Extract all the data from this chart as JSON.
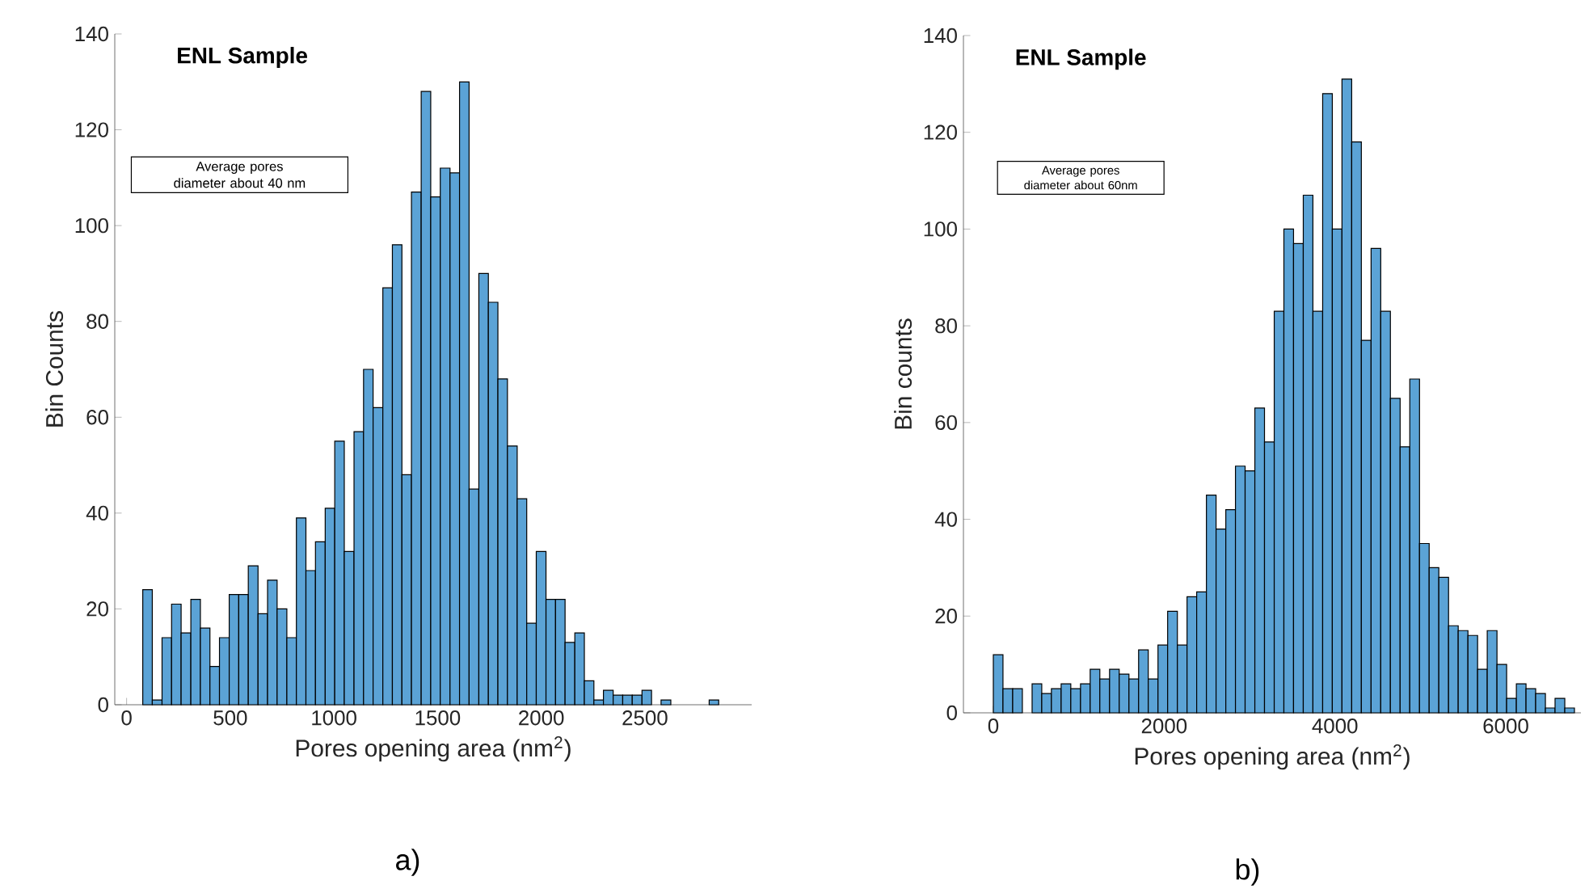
{
  "chart_data": [
    {
      "type": "histogram",
      "title": "ENL Sample",
      "xlabel": "Pores opening area (nm$^{2}$)",
      "ylabel": "Bin Counts",
      "annotations": [
        "Average pores diameter about 40 nm",
        "a)"
      ],
      "bins": [
        78,
        124,
        171,
        217,
        263,
        310,
        356,
        402,
        448,
        495,
        541,
        587,
        634,
        680,
        726,
        773,
        819,
        865,
        911,
        958,
        1004,
        1050,
        1097,
        1143,
        1189,
        1236,
        1282,
        1328,
        1374,
        1421,
        1467,
        1513,
        1560,
        1606,
        1652,
        1699,
        1745,
        1791,
        1837,
        1884,
        1930,
        1976,
        2023,
        2069,
        2115,
        2162,
        2208,
        2254,
        2300,
        2347,
        2393,
        2439,
        2486,
        2532,
        2578,
        2625,
        2671,
        2717,
        2763,
        2810,
        2856
      ],
      "values": [
        24,
        1,
        14,
        21,
        15,
        22,
        16,
        8,
        14,
        23,
        23,
        29,
        19,
        26,
        20,
        14,
        39,
        28,
        34,
        41,
        55,
        32,
        57,
        70,
        62,
        87,
        96,
        48,
        107,
        128,
        106,
        112,
        111,
        130,
        45,
        90,
        84,
        68,
        54,
        43,
        17,
        32,
        22,
        22,
        13,
        15,
        5,
        1,
        3,
        2,
        2,
        2,
        3,
        0,
        1,
        0,
        0,
        0,
        0,
        1
      ],
      "color": "#5ba3d6",
      "xlim": [
        -57,
        3015
      ],
      "ylim": [
        0,
        140
      ],
      "xticks": [
        0,
        500,
        1000,
        1500,
        2000,
        2500
      ],
      "yticks": [
        0,
        20,
        40,
        60,
        80,
        100,
        120,
        140
      ]
    },
    {
      "type": "histogram",
      "title": "ENL Sample",
      "xlabel": "Pores opening area (nm$^{2}$)",
      "ylabel": "Bin counts",
      "annotations": [
        "Average pores diameter about 60nm",
        "b)"
      ],
      "bins": [
        0,
        113,
        227,
        340,
        454,
        567,
        680,
        794,
        907,
        1021,
        1134,
        1247,
        1361,
        1474,
        1588,
        1701,
        1814,
        1928,
        2041,
        2155,
        2268,
        2381,
        2495,
        2608,
        2722,
        2835,
        2948,
        3062,
        3175,
        3289,
        3402,
        3515,
        3629,
        3742,
        3856,
        3969,
        4082,
        4196,
        4309,
        4423,
        4536,
        4649,
        4763,
        4876,
        4990,
        5103,
        5216,
        5330,
        5443,
        5557,
        5670,
        5783,
        5897,
        6010,
        6124,
        6237,
        6350,
        6464,
        6577,
        6691,
        6804
      ],
      "values": [
        12,
        5,
        5,
        0,
        6,
        4,
        5,
        6,
        5,
        6,
        9,
        7,
        9,
        8,
        7,
        13,
        7,
        14,
        21,
        14,
        24,
        25,
        45,
        38,
        42,
        51,
        50,
        63,
        56,
        83,
        100,
        97,
        107,
        83,
        128,
        100,
        131,
        118,
        77,
        96,
        83,
        65,
        55,
        69,
        35,
        30,
        28,
        18,
        17,
        16,
        9,
        17,
        10,
        3,
        6,
        5,
        4,
        1,
        3,
        1
      ],
      "color": "#5ba3d6",
      "xlim": [
        -350,
        6880
      ],
      "ylim": [
        0,
        140
      ],
      "xticks": [
        0,
        2000,
        4000,
        6000
      ],
      "yticks": [
        0,
        20,
        40,
        60,
        80,
        100,
        120,
        140
      ]
    }
  ]
}
